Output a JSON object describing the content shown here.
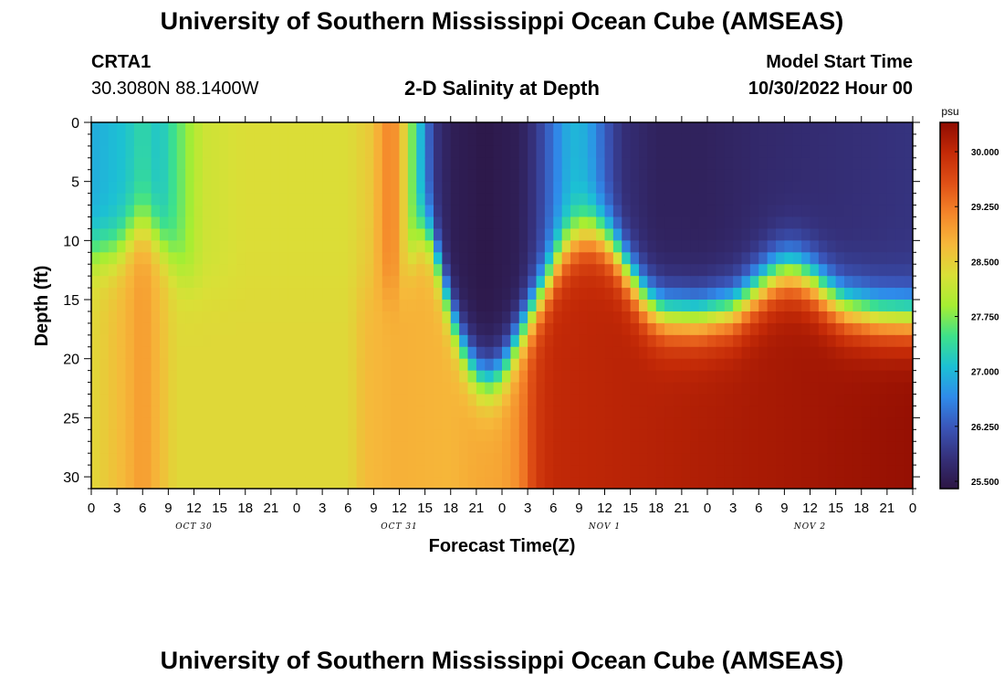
{
  "page": {
    "title_top": "University of Southern Mississippi Ocean Cube (AMSEAS)",
    "title_bottom": "University of Southern Mississippi Ocean Cube (AMSEAS)",
    "station_id": "CRTA1",
    "station_coords": "30.3080N  88.1400W",
    "model_start_label": "Model Start Time",
    "model_start_value": "10/30/2022 Hour 00",
    "chart_title": "2-D Salinity at Depth"
  },
  "chart_data": {
    "type": "heatmap",
    "title": "2-D Salinity at Depth",
    "xlabel": "Forecast Time(Z)",
    "ylabel": "Depth (ft)",
    "x_hours_range": [
      0,
      96
    ],
    "x_tick_step_hours": 3,
    "x_tick_labels": [
      "0",
      "3",
      "6",
      "9",
      "12",
      "15",
      "18",
      "21",
      "0",
      "3",
      "6",
      "9",
      "12",
      "15",
      "18",
      "21",
      "0",
      "3",
      "6",
      "9",
      "12",
      "15",
      "18",
      "21",
      "0",
      "3",
      "6",
      "9",
      "12",
      "15",
      "18",
      "21",
      "0"
    ],
    "date_labels": [
      {
        "text": "OCT 30",
        "hour": 12
      },
      {
        "text": "OCT 31",
        "hour": 36
      },
      {
        "text": "NOV 1",
        "hour": 60
      },
      {
        "text": "NOV 2",
        "hour": 84
      }
    ],
    "ylim": [
      0,
      31
    ],
    "y_ticks": [
      0,
      5,
      10,
      15,
      20,
      25,
      30
    ],
    "y_minor_step": 1,
    "colorbar": {
      "units": "psu",
      "range": [
        25.4,
        30.4
      ],
      "tick_values": [
        25.5,
        26.25,
        27.0,
        27.75,
        28.5,
        29.25,
        30.0
      ],
      "tick_labels": [
        "25.500",
        "26.250",
        "27.000",
        "27.750",
        "28.500",
        "29.250",
        "30.000"
      ],
      "stops": [
        "#2c1543",
        "#35307a",
        "#3a55b8",
        "#2f8bea",
        "#1cc0d4",
        "#3ee28a",
        "#a6ee32",
        "#d9e037",
        "#f6b83a",
        "#f5862a",
        "#e05016",
        "#c42a07",
        "#8f0c02"
      ]
    },
    "interface_depth_ft": [
      {
        "hour": 0,
        "depth": 11
      },
      {
        "hour": 3,
        "depth": 10.8
      },
      {
        "hour": 5,
        "depth": 9
      },
      {
        "hour": 6,
        "depth": 8.5
      },
      {
        "hour": 7,
        "depth": 9
      },
      {
        "hour": 9,
        "depth": 11
      },
      {
        "hour": 11,
        "depth": 13
      },
      {
        "hour": 13,
        "depth": 14
      },
      {
        "hour": 36,
        "depth": 14
      },
      {
        "hour": 38,
        "depth": 10
      },
      {
        "hour": 39,
        "depth": 9
      },
      {
        "hour": 40,
        "depth": 10.5
      },
      {
        "hour": 42,
        "depth": 16
      },
      {
        "hour": 44,
        "depth": 20
      },
      {
        "hour": 46,
        "depth": 21.8
      },
      {
        "hour": 48,
        "depth": 21
      },
      {
        "hour": 50,
        "depth": 18
      },
      {
        "hour": 53,
        "depth": 14
      },
      {
        "hour": 55,
        "depth": 11
      },
      {
        "hour": 57,
        "depth": 9.5
      },
      {
        "hour": 59,
        "depth": 9.3
      },
      {
        "hour": 61,
        "depth": 10.5
      },
      {
        "hour": 63,
        "depth": 13
      },
      {
        "hour": 65,
        "depth": 15.2
      },
      {
        "hour": 67,
        "depth": 16.2
      },
      {
        "hour": 71,
        "depth": 16.4
      },
      {
        "hour": 75,
        "depth": 15.8
      },
      {
        "hour": 78,
        "depth": 14
      },
      {
        "hour": 80,
        "depth": 12.8
      },
      {
        "hour": 82,
        "depth": 12.5
      },
      {
        "hour": 84,
        "depth": 13.2
      },
      {
        "hour": 86,
        "depth": 14.5
      },
      {
        "hour": 88,
        "depth": 15.6
      },
      {
        "hour": 92,
        "depth": 16.3
      },
      {
        "hour": 96,
        "depth": 16.5
      }
    ],
    "surface_salinity_psu": [
      {
        "hour": 0,
        "value": 26.9
      },
      {
        "hour": 4,
        "value": 27.1
      },
      {
        "hour": 6,
        "value": 27.35
      },
      {
        "hour": 8,
        "value": 27.1
      },
      {
        "hour": 10,
        "value": 27.55
      },
      {
        "hour": 13,
        "value": 28.2
      },
      {
        "hour": 18,
        "value": 28.35
      },
      {
        "hour": 30,
        "value": 28.35
      },
      {
        "hour": 33,
        "value": 28.6
      },
      {
        "hour": 34,
        "value": 29.0
      },
      {
        "hour": 35,
        "value": 29.2
      },
      {
        "hour": 36,
        "value": 28.9
      },
      {
        "hour": 37,
        "value": 28.1
      },
      {
        "hour": 38,
        "value": 27.3
      },
      {
        "hour": 39,
        "value": 26.7
      },
      {
        "hour": 40,
        "value": 25.9
      },
      {
        "hour": 42,
        "value": 25.55
      },
      {
        "hour": 46,
        "value": 25.45
      },
      {
        "hour": 50,
        "value": 25.55
      },
      {
        "hour": 52,
        "value": 25.9
      },
      {
        "hour": 54,
        "value": 26.5
      },
      {
        "hour": 56,
        "value": 27.0
      },
      {
        "hour": 58,
        "value": 26.9
      },
      {
        "hour": 60,
        "value": 26.3
      },
      {
        "hour": 62,
        "value": 25.8
      },
      {
        "hour": 66,
        "value": 25.6
      },
      {
        "hour": 72,
        "value": 25.6
      },
      {
        "hour": 78,
        "value": 25.7
      },
      {
        "hour": 84,
        "value": 25.75
      },
      {
        "hour": 90,
        "value": 25.8
      },
      {
        "hour": 96,
        "value": 25.85
      }
    ],
    "deep_salinity_psu": [
      {
        "hour": 0,
        "value": 28.4
      },
      {
        "hour": 4,
        "value": 28.75
      },
      {
        "hour": 6,
        "value": 29.0
      },
      {
        "hour": 8,
        "value": 28.7
      },
      {
        "hour": 10,
        "value": 28.4
      },
      {
        "hour": 30,
        "value": 28.4
      },
      {
        "hour": 32,
        "value": 28.7
      },
      {
        "hour": 36,
        "value": 28.8
      },
      {
        "hour": 42,
        "value": 28.75
      },
      {
        "hour": 45,
        "value": 28.85
      },
      {
        "hour": 48,
        "value": 28.9
      },
      {
        "hour": 50,
        "value": 29.1
      },
      {
        "hour": 52,
        "value": 29.8
      },
      {
        "hour": 54,
        "value": 30.0
      },
      {
        "hour": 60,
        "value": 30.05
      },
      {
        "hour": 66,
        "value": 30.1
      },
      {
        "hour": 72,
        "value": 30.15
      },
      {
        "hour": 78,
        "value": 30.2
      },
      {
        "hour": 84,
        "value": 30.25
      },
      {
        "hour": 90,
        "value": 30.3
      },
      {
        "hour": 96,
        "value": 30.35
      }
    ]
  }
}
